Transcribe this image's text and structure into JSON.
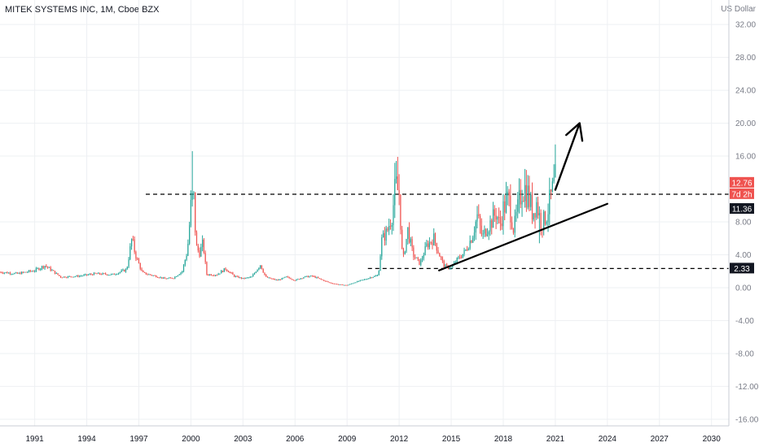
{
  "header": {
    "title": "MITEK SYSTEMS INC, 1M, Cboe BZX",
    "currency": "US Dollar"
  },
  "colors": {
    "up": "#26a69a",
    "down": "#ef5350",
    "grid": "#eef0f3",
    "axis": "#c8ccd4",
    "annotation": "#000000",
    "price_tag_red": "#ef5350",
    "price_tag_dark": "#131722"
  },
  "price_tags": {
    "last_price": "12.76",
    "countdown": "7d 2h",
    "resistance": "11.36",
    "support": "2.33"
  },
  "chart_data": {
    "type": "candlestick",
    "title": "MITEK SYSTEMS INC, 1M, Cboe BZX",
    "ylabel": "US Dollar",
    "ylim": [
      -16.8,
      33
    ],
    "xlim": [
      1989.0,
      2031.0
    ],
    "y_ticks": [
      "32.00",
      "28.00",
      "24.00",
      "20.00",
      "16.00",
      "8.00",
      "4.00",
      "0.00",
      "-4.00",
      "-8.00",
      "-12.00",
      "-16.00"
    ],
    "y_tick_values": [
      32,
      28,
      24,
      20,
      16,
      8,
      4,
      0,
      -4,
      -8,
      -12,
      -16
    ],
    "x_ticks": [
      "1991",
      "1994",
      "1997",
      "2000",
      "2003",
      "2006",
      "2009",
      "2012",
      "2015",
      "2018",
      "2021",
      "2024",
      "2027",
      "2030"
    ],
    "x_tick_values": [
      1991,
      1994,
      1997,
      2000,
      2003,
      2006,
      2009,
      2012,
      2015,
      2018,
      2021,
      2024,
      2027,
      2030
    ],
    "close_series": {
      "x": [
        1989.0,
        1990.0,
        1991.0,
        1991.6,
        1992.5,
        1993.5,
        1994.5,
        1995.5,
        1996.3,
        1996.6,
        1996.8,
        1997.2,
        1997.8,
        1998.5,
        1999.0,
        1999.5,
        1999.8,
        2000.0,
        2000.15,
        2000.3,
        2000.5,
        2000.7,
        2000.9,
        2001.5,
        2002.0,
        2002.5,
        2003.0,
        2003.5,
        2004.0,
        2004.3,
        2004.6,
        2005.0,
        2005.5,
        2006.0,
        2006.5,
        2007.0,
        2007.5,
        2008.0,
        2008.5,
        2009.0,
        2009.5,
        2010.0,
        2010.4,
        2010.8,
        2011.0,
        2011.3,
        2011.6,
        2011.8,
        2012.0,
        2012.2,
        2012.5,
        2012.8,
        2013.2,
        2013.6,
        2014.0,
        2014.3,
        2014.6,
        2015.0,
        2015.3,
        2015.8,
        2016.2,
        2016.5,
        2016.8,
        2017.0,
        2017.3,
        2017.6,
        2017.8,
        2018.0,
        2018.3,
        2018.6,
        2018.9,
        2019.1,
        2019.4,
        2019.7,
        2019.9,
        2020.2,
        2020.5,
        2020.8,
        2021.0
      ],
      "close": [
        1.9,
        1.7,
        2.1,
        2.7,
        1.3,
        1.4,
        1.7,
        1.6,
        2.2,
        6.0,
        4.0,
        1.8,
        1.5,
        1.1,
        1.2,
        2.0,
        4.5,
        9.8,
        11.4,
        5.0,
        4.2,
        5.5,
        1.6,
        1.6,
        2.3,
        1.4,
        1.1,
        1.3,
        2.8,
        1.3,
        1.1,
        0.9,
        1.3,
        0.9,
        1.3,
        1.4,
        1.0,
        0.6,
        0.4,
        0.3,
        0.7,
        1.0,
        1.3,
        1.5,
        5.8,
        6.8,
        9.0,
        12.3,
        11.5,
        3.1,
        7.0,
        4.0,
        2.9,
        5.2,
        6.0,
        4.1,
        2.6,
        2.4,
        3.3,
        4.4,
        6.2,
        8.7,
        6.1,
        7.1,
        8.0,
        9.2,
        7.5,
        9.6,
        10.8,
        7.0,
        10.2,
        12.5,
        11.5,
        9.0,
        10.5,
        7.6,
        8.9,
        11.4,
        12.76
      ]
    },
    "horizontal_levels": [
      {
        "price": 11.36,
        "x_start": 1997.4
      },
      {
        "price": 2.33,
        "x_start": 2010.2
      }
    ],
    "trendline": {
      "x": [
        2014.3,
        2024.0
      ],
      "y": [
        2.1,
        10.2
      ]
    },
    "arrow": {
      "x": [
        2021.0,
        2022.4
      ],
      "y": [
        11.9,
        20.0
      ]
    }
  }
}
